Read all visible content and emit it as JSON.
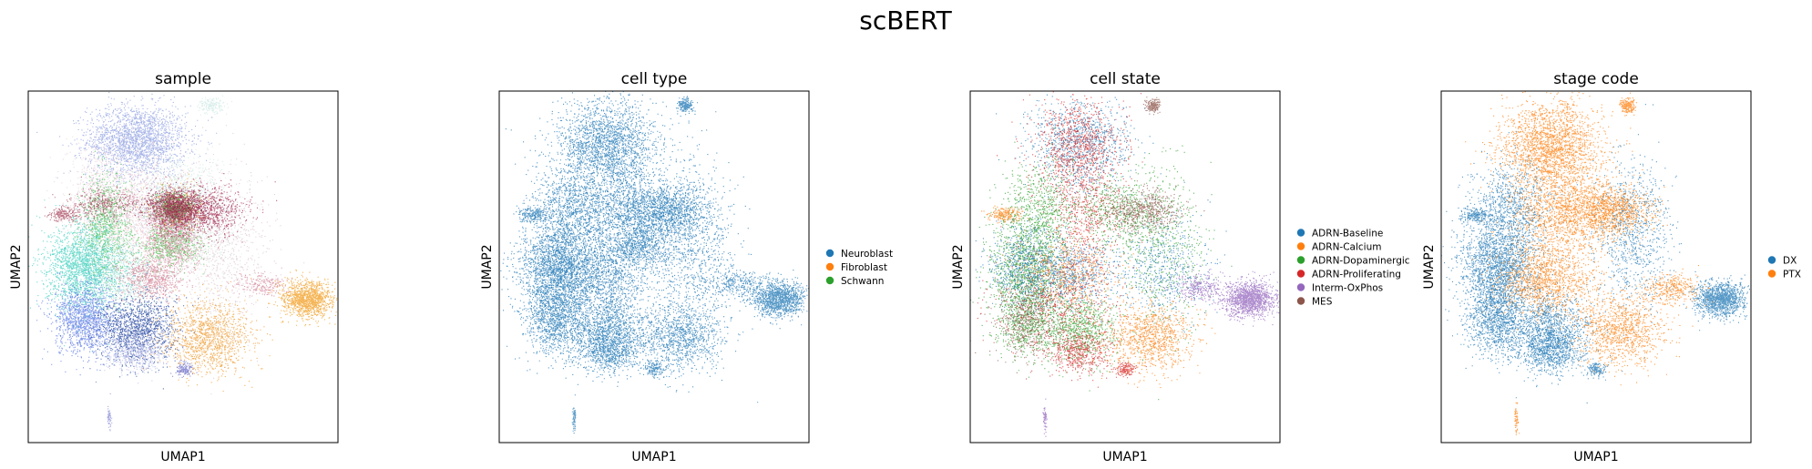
{
  "figure": {
    "title": "scBERT"
  },
  "chart_data": [
    {
      "type": "scatter",
      "title": "sample",
      "xlabel": "UMAP1",
      "ylabel": "UMAP2",
      "legend": [],
      "clusters": [
        {
          "x": 0.35,
          "y": 0.86,
          "sx": 0.08,
          "sy": 0.05,
          "n": 2200,
          "color": "#8c9de0"
        },
        {
          "x": 0.22,
          "y": 0.68,
          "sx": 0.05,
          "sy": 0.08,
          "n": 900,
          "color": "#e7d3dc"
        },
        {
          "x": 0.25,
          "y": 0.62,
          "sx": 0.04,
          "sy": 0.07,
          "n": 900,
          "color": "#3fbf4f"
        },
        {
          "x": 0.35,
          "y": 0.65,
          "sx": 0.07,
          "sy": 0.08,
          "n": 1200,
          "color": "#e8c4cf"
        },
        {
          "x": 0.48,
          "y": 0.7,
          "sx": 0.08,
          "sy": 0.06,
          "n": 700,
          "color": "#cfe8df"
        },
        {
          "x": 0.47,
          "y": 0.64,
          "sx": 0.03,
          "sy": 0.03,
          "n": 500,
          "color": "#c7a5b2"
        },
        {
          "x": 0.47,
          "y": 0.59,
          "sx": 0.04,
          "sy": 0.04,
          "n": 500,
          "color": "#d44d74"
        },
        {
          "x": 0.48,
          "y": 0.67,
          "sx": 0.04,
          "sy": 0.03,
          "n": 500,
          "color": "#e6a63a"
        },
        {
          "x": 0.47,
          "y": 0.67,
          "sx": 0.06,
          "sy": 0.025,
          "n": 500,
          "color": "#8a2b4f"
        },
        {
          "x": 0.24,
          "y": 0.68,
          "sx": 0.06,
          "sy": 0.02,
          "n": 350,
          "color": "#a8475f"
        },
        {
          "x": 0.18,
          "y": 0.5,
          "sx": 0.06,
          "sy": 0.06,
          "n": 2000,
          "color": "#3ccfbf"
        },
        {
          "x": 0.3,
          "y": 0.48,
          "sx": 0.07,
          "sy": 0.05,
          "n": 700,
          "color": "#a6dfd4"
        },
        {
          "x": 0.4,
          "y": 0.47,
          "sx": 0.05,
          "sy": 0.03,
          "n": 700,
          "color": "#d27f93"
        },
        {
          "x": 0.46,
          "y": 0.56,
          "sx": 0.05,
          "sy": 0.03,
          "n": 600,
          "color": "#46c44a"
        },
        {
          "x": 0.62,
          "y": 0.55,
          "sx": 0.08,
          "sy": 0.12,
          "n": 900,
          "color": "#dac3ca"
        },
        {
          "x": 0.55,
          "y": 0.58,
          "sx": 0.08,
          "sy": 0.05,
          "n": 400,
          "color": "#dbeee8"
        },
        {
          "x": 0.48,
          "y": 0.67,
          "sx": 0.07,
          "sy": 0.05,
          "n": 500,
          "color": "#c7d8e6"
        },
        {
          "x": 0.47,
          "y": 0.67,
          "sx": 0.03,
          "sy": 0.02,
          "n": 400,
          "color": "#2ba83a"
        },
        {
          "x": 0.47,
          "y": 0.67,
          "sx": 0.03,
          "sy": 0.02,
          "n": 400,
          "color": "#9b1a47"
        },
        {
          "x": 0.47,
          "y": 0.67,
          "sx": 0.04,
          "sy": 0.03,
          "n": 400,
          "color": "#b1546c"
        },
        {
          "x": 0.56,
          "y": 0.66,
          "sx": 0.07,
          "sy": 0.035,
          "n": 900,
          "color": "#a01f48"
        },
        {
          "x": 0.46,
          "y": 0.56,
          "sx": 0.04,
          "sy": 0.03,
          "n": 400,
          "color": "#e2b0c2"
        },
        {
          "x": 0.18,
          "y": 0.35,
          "sx": 0.05,
          "sy": 0.05,
          "n": 1400,
          "color": "#5b78e4"
        },
        {
          "x": 0.35,
          "y": 0.32,
          "sx": 0.06,
          "sy": 0.05,
          "n": 1400,
          "color": "#1a3d9b"
        },
        {
          "x": 0.58,
          "y": 0.3,
          "sx": 0.07,
          "sy": 0.05,
          "n": 1300,
          "color": "#ef9a2e"
        },
        {
          "x": 0.9,
          "y": 0.41,
          "sx": 0.04,
          "sy": 0.025,
          "n": 1300,
          "color": "#f29c1f"
        },
        {
          "x": 0.35,
          "y": 0.26,
          "sx": 0.05,
          "sy": 0.03,
          "n": 600,
          "color": "#b9bde8"
        },
        {
          "x": 0.5,
          "y": 0.21,
          "sx": 0.015,
          "sy": 0.01,
          "n": 150,
          "color": "#6b6ec8"
        },
        {
          "x": 0.59,
          "y": 0.96,
          "sx": 0.02,
          "sy": 0.01,
          "n": 200,
          "color": "#cfe9e4"
        },
        {
          "x": 0.26,
          "y": 0.07,
          "sx": 0.003,
          "sy": 0.02,
          "n": 60,
          "color": "#8c8fd8"
        },
        {
          "x": 0.76,
          "y": 0.45,
          "sx": 0.04,
          "sy": 0.015,
          "n": 200,
          "color": "#d27f93"
        },
        {
          "x": 0.11,
          "y": 0.65,
          "sx": 0.025,
          "sy": 0.01,
          "n": 200,
          "color": "#a8475f"
        }
      ]
    },
    {
      "type": "scatter",
      "title": "cell type",
      "xlabel": "UMAP1",
      "ylabel": "UMAP2",
      "legend": [
        {
          "label": "Neuroblast",
          "color": "#1f77b4"
        },
        {
          "label": "Fibroblast",
          "color": "#ff7f0e"
        },
        {
          "label": "Schwann",
          "color": "#2ca02c"
        }
      ],
      "clusters": [
        {
          "x": 0.35,
          "y": 0.85,
          "sx": 0.08,
          "sy": 0.06,
          "n": 2000,
          "color": "#1f77b4"
        },
        {
          "x": 0.22,
          "y": 0.66,
          "sx": 0.06,
          "sy": 0.07,
          "n": 1000,
          "color": "#1f77b4"
        },
        {
          "x": 0.36,
          "y": 0.66,
          "sx": 0.07,
          "sy": 0.08,
          "n": 1100,
          "color": "#1f77b4"
        },
        {
          "x": 0.48,
          "y": 0.66,
          "sx": 0.07,
          "sy": 0.05,
          "n": 800,
          "color": "#1f77b4"
        },
        {
          "x": 0.18,
          "y": 0.5,
          "sx": 0.06,
          "sy": 0.06,
          "n": 1800,
          "color": "#1f77b4"
        },
        {
          "x": 0.32,
          "y": 0.48,
          "sx": 0.08,
          "sy": 0.05,
          "n": 1300,
          "color": "#1f77b4"
        },
        {
          "x": 0.46,
          "y": 0.56,
          "sx": 0.05,
          "sy": 0.03,
          "n": 600,
          "color": "#1f77b4"
        },
        {
          "x": 0.62,
          "y": 0.55,
          "sx": 0.07,
          "sy": 0.12,
          "n": 1000,
          "color": "#1f77b4"
        },
        {
          "x": 0.56,
          "y": 0.66,
          "sx": 0.06,
          "sy": 0.03,
          "n": 700,
          "color": "#1f77b4"
        },
        {
          "x": 0.18,
          "y": 0.35,
          "sx": 0.05,
          "sy": 0.05,
          "n": 1200,
          "color": "#1f77b4"
        },
        {
          "x": 0.35,
          "y": 0.32,
          "sx": 0.06,
          "sy": 0.05,
          "n": 1200,
          "color": "#1f77b4"
        },
        {
          "x": 0.58,
          "y": 0.3,
          "sx": 0.07,
          "sy": 0.05,
          "n": 1100,
          "color": "#1f77b4"
        },
        {
          "x": 0.35,
          "y": 0.26,
          "sx": 0.05,
          "sy": 0.03,
          "n": 600,
          "color": "#1f77b4"
        },
        {
          "x": 0.9,
          "y": 0.41,
          "sx": 0.04,
          "sy": 0.025,
          "n": 1300,
          "color": "#1f77b4"
        },
        {
          "x": 0.76,
          "y": 0.45,
          "sx": 0.05,
          "sy": 0.02,
          "n": 300,
          "color": "#1f77b4"
        },
        {
          "x": 0.5,
          "y": 0.21,
          "sx": 0.015,
          "sy": 0.01,
          "n": 150,
          "color": "#1f77b4"
        },
        {
          "x": 0.6,
          "y": 0.96,
          "sx": 0.012,
          "sy": 0.01,
          "n": 200,
          "color": "#1f77b4"
        },
        {
          "x": 0.11,
          "y": 0.65,
          "sx": 0.025,
          "sy": 0.01,
          "n": 200,
          "color": "#1f77b4"
        },
        {
          "x": 0.24,
          "y": 0.07,
          "sx": 0.003,
          "sy": 0.02,
          "n": 60,
          "color": "#1f77b4"
        }
      ]
    },
    {
      "type": "scatter",
      "title": "cell state",
      "xlabel": "UMAP1",
      "ylabel": "UMAP2",
      "legend": [
        {
          "label": "ADRN-Baseline",
          "color": "#1f77b4"
        },
        {
          "label": "ADRN-Calcium",
          "color": "#ff7f0e"
        },
        {
          "label": "ADRN-Dopaminergic",
          "color": "#2ca02c"
        },
        {
          "label": "ADRN-Proliferating",
          "color": "#d62728"
        },
        {
          "label": "Interm-OxPhos",
          "color": "#9467bd"
        },
        {
          "label": "MES",
          "color": "#8c564b"
        }
      ],
      "clusters": [
        {
          "x": 0.35,
          "y": 0.85,
          "sx": 0.08,
          "sy": 0.06,
          "n": 1000,
          "color": "#1f77b4"
        },
        {
          "x": 0.35,
          "y": 0.85,
          "sx": 0.07,
          "sy": 0.06,
          "n": 900,
          "color": "#d62728"
        },
        {
          "x": 0.36,
          "y": 0.66,
          "sx": 0.07,
          "sy": 0.08,
          "n": 700,
          "color": "#d62728"
        },
        {
          "x": 0.22,
          "y": 0.66,
          "sx": 0.06,
          "sy": 0.07,
          "n": 700,
          "color": "#2ca02c"
        },
        {
          "x": 0.48,
          "y": 0.66,
          "sx": 0.07,
          "sy": 0.05,
          "n": 500,
          "color": "#2ca02c"
        },
        {
          "x": 0.18,
          "y": 0.5,
          "sx": 0.06,
          "sy": 0.06,
          "n": 1000,
          "color": "#2ca02c"
        },
        {
          "x": 0.18,
          "y": 0.5,
          "sx": 0.06,
          "sy": 0.06,
          "n": 700,
          "color": "#1f77b4"
        },
        {
          "x": 0.32,
          "y": 0.48,
          "sx": 0.08,
          "sy": 0.05,
          "n": 700,
          "color": "#1f77b4"
        },
        {
          "x": 0.32,
          "y": 0.48,
          "sx": 0.08,
          "sy": 0.05,
          "n": 500,
          "color": "#ff7f0e"
        },
        {
          "x": 0.62,
          "y": 0.55,
          "sx": 0.07,
          "sy": 0.12,
          "n": 600,
          "color": "#2ca02c"
        },
        {
          "x": 0.62,
          "y": 0.5,
          "sx": 0.07,
          "sy": 0.08,
          "n": 500,
          "color": "#1f77b4"
        },
        {
          "x": 0.56,
          "y": 0.66,
          "sx": 0.06,
          "sy": 0.03,
          "n": 600,
          "color": "#8c564b"
        },
        {
          "x": 0.18,
          "y": 0.35,
          "sx": 0.05,
          "sy": 0.05,
          "n": 700,
          "color": "#2ca02c"
        },
        {
          "x": 0.18,
          "y": 0.35,
          "sx": 0.05,
          "sy": 0.05,
          "n": 500,
          "color": "#8c564b"
        },
        {
          "x": 0.35,
          "y": 0.32,
          "sx": 0.06,
          "sy": 0.05,
          "n": 800,
          "color": "#2ca02c"
        },
        {
          "x": 0.35,
          "y": 0.26,
          "sx": 0.05,
          "sy": 0.03,
          "n": 500,
          "color": "#d62728"
        },
        {
          "x": 0.58,
          "y": 0.3,
          "sx": 0.07,
          "sy": 0.05,
          "n": 1000,
          "color": "#ff7f0e"
        },
        {
          "x": 0.3,
          "y": 0.4,
          "sx": 0.1,
          "sy": 0.08,
          "n": 600,
          "color": "#d62728"
        },
        {
          "x": 0.9,
          "y": 0.41,
          "sx": 0.04,
          "sy": 0.025,
          "n": 1400,
          "color": "#9467bd"
        },
        {
          "x": 0.74,
          "y": 0.44,
          "sx": 0.04,
          "sy": 0.02,
          "n": 300,
          "color": "#9467bd"
        },
        {
          "x": 0.5,
          "y": 0.21,
          "sx": 0.015,
          "sy": 0.01,
          "n": 150,
          "color": "#d62728"
        },
        {
          "x": 0.59,
          "y": 0.96,
          "sx": 0.012,
          "sy": 0.01,
          "n": 200,
          "color": "#8c564b"
        },
        {
          "x": 0.11,
          "y": 0.65,
          "sx": 0.025,
          "sy": 0.01,
          "n": 200,
          "color": "#ff7f0e"
        },
        {
          "x": 0.24,
          "y": 0.07,
          "sx": 0.003,
          "sy": 0.02,
          "n": 60,
          "color": "#9467bd"
        }
      ]
    },
    {
      "type": "scatter",
      "title": "stage code",
      "xlabel": "UMAP1",
      "ylabel": "UMAP2",
      "legend": [
        {
          "label": "DX",
          "color": "#1f77b4"
        },
        {
          "label": "PTX",
          "color": "#ff7f0e"
        }
      ],
      "clusters": [
        {
          "x": 0.35,
          "y": 0.85,
          "sx": 0.08,
          "sy": 0.06,
          "n": 2000,
          "color": "#ff7f0e"
        },
        {
          "x": 0.22,
          "y": 0.66,
          "sx": 0.06,
          "sy": 0.07,
          "n": 1000,
          "color": "#1f77b4"
        },
        {
          "x": 0.36,
          "y": 0.66,
          "sx": 0.07,
          "sy": 0.08,
          "n": 1100,
          "color": "#ff7f0e"
        },
        {
          "x": 0.48,
          "y": 0.66,
          "sx": 0.07,
          "sy": 0.05,
          "n": 800,
          "color": "#ff7f0e"
        },
        {
          "x": 0.18,
          "y": 0.5,
          "sx": 0.06,
          "sy": 0.06,
          "n": 1800,
          "color": "#1f77b4"
        },
        {
          "x": 0.34,
          "y": 0.46,
          "sx": 0.08,
          "sy": 0.05,
          "n": 1300,
          "color": "#ff7f0e"
        },
        {
          "x": 0.62,
          "y": 0.6,
          "sx": 0.06,
          "sy": 0.1,
          "n": 900,
          "color": "#1f77b4"
        },
        {
          "x": 0.56,
          "y": 0.66,
          "sx": 0.06,
          "sy": 0.03,
          "n": 700,
          "color": "#ff7f0e"
        },
        {
          "x": 0.18,
          "y": 0.35,
          "sx": 0.05,
          "sy": 0.05,
          "n": 1200,
          "color": "#1f77b4"
        },
        {
          "x": 0.35,
          "y": 0.32,
          "sx": 0.06,
          "sy": 0.05,
          "n": 1200,
          "color": "#1f77b4"
        },
        {
          "x": 0.58,
          "y": 0.32,
          "sx": 0.07,
          "sy": 0.05,
          "n": 1100,
          "color": "#ff7f0e"
        },
        {
          "x": 0.35,
          "y": 0.26,
          "sx": 0.05,
          "sy": 0.03,
          "n": 600,
          "color": "#1f77b4"
        },
        {
          "x": 0.9,
          "y": 0.41,
          "sx": 0.04,
          "sy": 0.025,
          "n": 1300,
          "color": "#1f77b4"
        },
        {
          "x": 0.74,
          "y": 0.44,
          "sx": 0.05,
          "sy": 0.02,
          "n": 350,
          "color": "#ff7f0e"
        },
        {
          "x": 0.5,
          "y": 0.21,
          "sx": 0.015,
          "sy": 0.01,
          "n": 150,
          "color": "#1f77b4"
        },
        {
          "x": 0.6,
          "y": 0.96,
          "sx": 0.012,
          "sy": 0.01,
          "n": 200,
          "color": "#ff7f0e"
        },
        {
          "x": 0.11,
          "y": 0.65,
          "sx": 0.025,
          "sy": 0.01,
          "n": 200,
          "color": "#1f77b4"
        },
        {
          "x": 0.24,
          "y": 0.07,
          "sx": 0.003,
          "sy": 0.02,
          "n": 60,
          "color": "#ff7f0e"
        }
      ]
    }
  ]
}
